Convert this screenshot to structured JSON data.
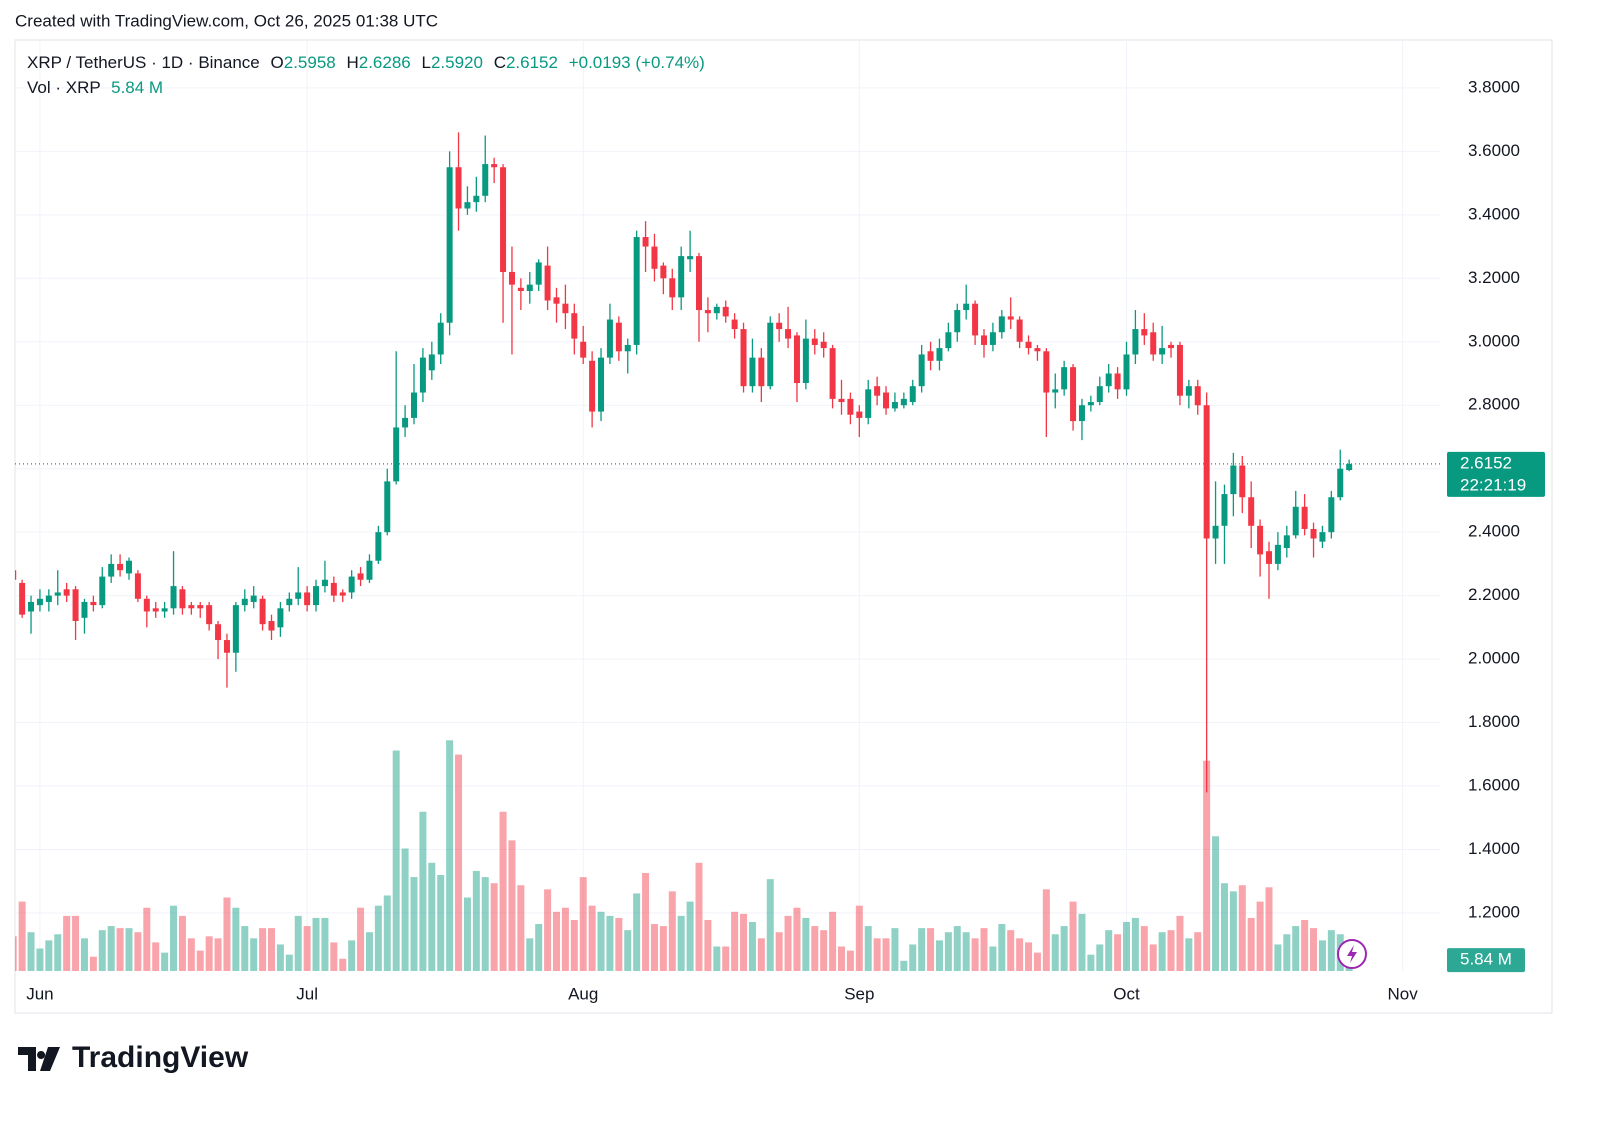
{
  "header": {
    "created": "Created with TradingView.com, Oct 26, 2025 01:38 UTC"
  },
  "chart_data": {
    "type": "candlestick",
    "legend": {
      "symbol": "XRP / TetherUS · 1D · Binance",
      "open_key": "O",
      "open": "2.5958",
      "high_key": "H",
      "high": "2.6286",
      "low_key": "L",
      "low": "2.5920",
      "close_key": "C",
      "close": "2.6152",
      "change": "+0.0193 (+0.74%)"
    },
    "categories": [
      null,
      null,
      null,
      "Jun",
      null,
      null,
      null,
      null,
      null,
      null,
      null,
      null,
      null,
      null,
      null,
      null,
      null,
      null,
      null,
      null,
      null,
      null,
      null,
      null,
      null,
      null,
      null,
      null,
      null,
      null,
      null,
      null,
      null,
      "Jul",
      null,
      null,
      null,
      null,
      null,
      null,
      null,
      null,
      null,
      null,
      null,
      null,
      null,
      null,
      null,
      null,
      null,
      null,
      null,
      null,
      null,
      null,
      null,
      null,
      null,
      null,
      null,
      null,
      null,
      null,
      "Aug",
      null,
      null,
      null,
      null,
      null,
      null,
      null,
      null,
      null,
      null,
      null,
      null,
      null,
      null,
      null,
      null,
      null,
      null,
      null,
      null,
      null,
      null,
      null,
      null,
      null,
      null,
      null,
      null,
      null,
      null,
      "Sep",
      null,
      null,
      null,
      null,
      null,
      null,
      null,
      null,
      null,
      null,
      null,
      null,
      null,
      null,
      null,
      null,
      null,
      null,
      null,
      null,
      null,
      null,
      null,
      null,
      null,
      null,
      null,
      null,
      null,
      "Oct",
      null,
      null,
      null,
      null,
      null,
      null,
      null,
      null,
      null,
      null,
      null,
      null,
      null,
      null,
      null,
      null,
      null,
      null,
      null,
      null,
      null,
      null,
      null,
      null,
      null,
      null,
      null,
      null,
      null,
      null,
      "Nov",
      null,
      null,
      null
    ],
    "open": [
      2.28,
      2.24,
      2.15,
      2.17,
      2.18,
      2.2,
      2.22,
      2.22,
      2.13,
      2.18,
      2.17,
      2.26,
      2.3,
      2.27,
      2.27,
      2.19,
      2.16,
      2.15,
      2.16,
      2.22,
      2.17,
      2.17,
      2.17,
      2.11,
      2.06,
      2.02,
      2.17,
      2.18,
      2.19,
      2.12,
      2.1,
      2.17,
      2.19,
      2.21,
      2.17,
      2.23,
      2.24,
      2.21,
      2.21,
      2.27,
      2.25,
      2.31,
      2.4,
      2.56,
      2.73,
      2.76,
      2.84,
      2.91,
      2.96,
      3.06,
      3.55,
      3.42,
      3.44,
      3.46,
      3.56,
      3.55,
      3.22,
      3.17,
      3.16,
      3.18,
      3.24,
      3.14,
      3.12,
      3.09,
      3.0,
      2.94,
      2.78,
      2.95,
      3.06,
      2.97,
      2.99,
      3.33,
      3.3,
      3.24,
      3.2,
      3.14,
      3.26,
      3.27,
      3.1,
      3.09,
      3.11,
      3.07,
      3.04,
      2.86,
      2.95,
      2.86,
      3.06,
      3.04,
      3.02,
      2.87,
      3.01,
      3.0,
      2.98,
      2.82,
      2.82,
      2.78,
      2.76,
      2.86,
      2.84,
      2.79,
      2.8,
      2.81,
      2.86,
      2.97,
      2.94,
      2.98,
      3.03,
      3.1,
      3.12,
      3.02,
      2.99,
      3.03,
      3.08,
      3.07,
      3.0,
      2.98,
      2.97,
      2.84,
      2.85,
      2.92,
      2.75,
      2.8,
      2.81,
      2.86,
      2.9,
      2.85,
      2.96,
      3.04,
      3.03,
      2.96,
      2.99,
      2.99,
      2.83,
      2.86,
      2.8,
      2.38,
      2.42,
      2.52,
      2.61,
      2.51,
      2.42,
      2.34,
      2.3,
      2.35,
      2.39,
      2.48,
      2.41,
      2.37,
      2.4,
      2.51,
      2.5958,
      null,
      null,
      null,
      null,
      null,
      null,
      null,
      null,
      null
    ],
    "high": [
      2.3,
      2.25,
      2.2,
      2.22,
      2.22,
      2.28,
      2.24,
      2.23,
      2.19,
      2.2,
      2.29,
      2.33,
      2.33,
      2.32,
      2.28,
      2.2,
      2.18,
      2.18,
      2.34,
      2.23,
      2.18,
      2.18,
      2.18,
      2.12,
      2.08,
      2.18,
      2.22,
      2.23,
      2.2,
      2.14,
      2.18,
      2.21,
      2.29,
      2.23,
      2.25,
      2.31,
      2.26,
      2.22,
      2.28,
      2.29,
      2.33,
      2.42,
      2.6,
      2.97,
      2.8,
      2.93,
      2.98,
      3.0,
      3.09,
      3.6,
      3.66,
      3.49,
      3.52,
      3.65,
      3.58,
      3.56,
      3.3,
      3.2,
      3.22,
      3.26,
      3.3,
      3.17,
      3.18,
      3.12,
      3.05,
      2.97,
      2.98,
      3.12,
      3.08,
      3.01,
      3.35,
      3.38,
      3.34,
      3.25,
      3.23,
      3.3,
      3.35,
      3.28,
      3.14,
      3.12,
      3.13,
      3.09,
      3.06,
      3.01,
      2.98,
      3.08,
      3.09,
      3.11,
      3.03,
      3.07,
      3.04,
      3.03,
      2.99,
      2.88,
      2.84,
      2.8,
      2.88,
      2.89,
      2.86,
      2.84,
      2.84,
      2.88,
      2.99,
      3.0,
      3.01,
      3.06,
      3.12,
      3.18,
      3.13,
      3.04,
      3.06,
      3.1,
      3.14,
      3.08,
      3.02,
      2.99,
      2.98,
      2.9,
      2.94,
      2.93,
      2.82,
      2.83,
      2.89,
      2.93,
      2.92,
      3.0,
      3.1,
      3.09,
      3.06,
      3.05,
      3.0,
      3.0,
      2.88,
      2.88,
      2.84,
      2.56,
      2.55,
      2.65,
      2.64,
      2.56,
      2.44,
      2.37,
      2.4,
      2.42,
      2.53,
      2.52,
      2.43,
      2.42,
      2.53,
      2.66,
      2.6286,
      null,
      null,
      null,
      null,
      null,
      null,
      null,
      null,
      null
    ],
    "low": [
      2.22,
      2.13,
      2.08,
      2.15,
      2.15,
      2.17,
      2.18,
      2.06,
      2.08,
      2.15,
      2.16,
      2.24,
      2.26,
      2.25,
      2.18,
      2.1,
      2.13,
      2.13,
      2.14,
      2.14,
      2.14,
      2.13,
      2.09,
      2.0,
      1.91,
      1.96,
      2.15,
      2.16,
      2.09,
      2.06,
      2.07,
      2.15,
      2.17,
      2.15,
      2.15,
      2.21,
      2.18,
      2.18,
      2.19,
      2.23,
      2.24,
      2.3,
      2.39,
      2.55,
      2.7,
      2.74,
      2.81,
      2.88,
      2.93,
      3.02,
      3.35,
      3.4,
      3.41,
      3.44,
      3.5,
      3.06,
      2.96,
      3.1,
      3.12,
      3.16,
      3.1,
      3.06,
      3.04,
      2.96,
      2.93,
      2.73,
      2.75,
      2.93,
      2.94,
      2.9,
      2.96,
      3.22,
      3.19,
      3.15,
      3.1,
      3.1,
      3.22,
      3.0,
      3.03,
      3.07,
      3.06,
      3.01,
      2.84,
      2.84,
      2.81,
      2.85,
      3.0,
      2.98,
      2.81,
      2.85,
      2.96,
      2.95,
      2.79,
      2.77,
      2.74,
      2.7,
      2.74,
      2.8,
      2.77,
      2.78,
      2.79,
      2.8,
      2.84,
      2.91,
      2.91,
      2.97,
      3.0,
      3.07,
      2.99,
      2.95,
      2.97,
      3.01,
      3.04,
      2.98,
      2.96,
      2.94,
      2.7,
      2.79,
      2.83,
      2.72,
      2.69,
      2.78,
      2.8,
      2.84,
      2.82,
      2.83,
      2.93,
      2.99,
      2.94,
      2.93,
      2.95,
      2.8,
      2.79,
      2.77,
      1.58,
      2.3,
      2.3,
      2.45,
      2.46,
      2.35,
      2.26,
      2.19,
      2.28,
      2.32,
      2.38,
      2.39,
      2.32,
      2.35,
      2.38,
      2.5,
      2.592,
      null,
      null,
      null,
      null,
      null,
      null,
      null,
      null,
      null
    ],
    "close": [
      2.25,
      2.14,
      2.18,
      2.19,
      2.2,
      2.21,
      2.2,
      2.12,
      2.18,
      2.17,
      2.26,
      2.3,
      2.28,
      2.31,
      2.19,
      2.15,
      2.15,
      2.16,
      2.23,
      2.16,
      2.16,
      2.16,
      2.11,
      2.06,
      2.02,
      2.17,
      2.19,
      2.2,
      2.11,
      2.09,
      2.16,
      2.19,
      2.21,
      2.17,
      2.23,
      2.25,
      2.2,
      2.2,
      2.26,
      2.25,
      2.31,
      2.4,
      2.56,
      2.73,
      2.76,
      2.84,
      2.95,
      2.96,
      3.06,
      3.55,
      3.42,
      3.44,
      3.46,
      3.56,
      3.55,
      3.22,
      3.18,
      3.16,
      3.18,
      3.25,
      3.13,
      3.12,
      3.09,
      3.01,
      2.95,
      2.78,
      2.95,
      3.07,
      2.97,
      2.99,
      3.33,
      3.3,
      3.23,
      3.2,
      3.14,
      3.27,
      3.27,
      3.1,
      3.09,
      3.11,
      3.08,
      3.04,
      2.86,
      2.95,
      2.86,
      3.06,
      3.04,
      3.01,
      2.87,
      3.01,
      2.99,
      2.98,
      2.82,
      2.81,
      2.77,
      2.76,
      2.85,
      2.83,
      2.79,
      2.81,
      2.82,
      2.86,
      2.96,
      2.94,
      2.98,
      3.03,
      3.1,
      3.12,
      3.02,
      2.99,
      3.03,
      3.08,
      3.07,
      3.0,
      2.98,
      2.97,
      2.84,
      2.85,
      2.92,
      2.75,
      2.8,
      2.81,
      2.86,
      2.9,
      2.85,
      2.96,
      3.04,
      3.02,
      2.96,
      2.98,
      2.98,
      2.83,
      2.86,
      2.8,
      2.38,
      2.42,
      2.52,
      2.61,
      2.51,
      2.42,
      2.33,
      2.3,
      2.36,
      2.39,
      2.48,
      2.41,
      2.38,
      2.4,
      2.51,
      2.6,
      2.6152,
      null,
      null,
      null,
      null,
      null,
      null,
      null,
      null,
      null
    ],
    "volume": {
      "name": "Vol · XRP",
      "axis": "y2",
      "last_label": "5.84 M",
      "values": [
        17,
        34,
        19,
        11,
        15,
        18,
        27,
        27,
        16,
        7,
        20,
        22,
        21,
        21,
        19,
        31,
        14,
        9,
        32,
        27,
        16,
        10,
        17,
        16,
        36,
        31,
        22,
        16,
        21,
        21,
        13,
        8,
        27,
        22,
        26,
        26,
        14,
        6,
        15,
        31,
        19,
        32,
        37,
        108,
        60,
        46,
        78,
        53,
        47,
        113,
        106,
        36,
        49,
        46,
        43,
        78,
        64,
        42,
        16,
        23,
        40,
        29,
        31,
        25,
        46,
        32,
        29,
        27,
        26,
        20,
        38,
        48,
        23,
        22,
        39,
        27,
        34,
        53,
        25,
        12,
        12,
        29,
        28,
        24,
        16,
        45,
        19,
        27,
        31,
        26,
        22,
        20,
        29,
        12,
        10,
        32,
        22,
        16,
        16,
        21,
        5,
        13,
        21,
        21,
        15,
        19,
        22,
        19,
        16,
        21,
        12,
        23,
        20,
        16,
        14,
        9,
        40,
        18,
        22,
        34,
        28,
        8,
        13,
        20,
        18,
        24,
        26,
        22,
        13,
        19,
        20,
        27,
        16,
        19,
        103,
        66,
        43,
        39,
        42,
        26,
        34,
        41,
        13,
        18,
        22,
        25,
        21,
        15,
        20,
        18,
        5.84,
        null,
        null,
        null,
        null,
        null,
        null,
        null,
        null,
        null
      ]
    },
    "countdown": "22:21:19",
    "up_color": "#089981",
    "down_color": "#f23645",
    "ylim": [
      1.017,
      3.951
    ],
    "yticks": [
      {
        "value": 1.2,
        "label": "1.2000"
      },
      {
        "value": 1.4,
        "label": "1.4000"
      },
      {
        "value": 1.6,
        "label": "1.6000"
      },
      {
        "value": 1.8,
        "label": "1.8000"
      },
      {
        "value": 2.0,
        "label": "2.0000"
      },
      {
        "value": 2.2,
        "label": "2.2000"
      },
      {
        "value": 2.4,
        "label": "2.4000"
      },
      {
        "value": 2.6,
        "label": "2.6000"
      },
      {
        "value": 2.8,
        "label": "2.8000"
      },
      {
        "value": 3.0,
        "label": "3.0000"
      },
      {
        "value": 3.2,
        "label": "3.2000"
      },
      {
        "value": 3.4,
        "label": "3.4000"
      },
      {
        "value": 3.6,
        "label": "3.6000"
      },
      {
        "value": 3.8,
        "label": "3.8000"
      }
    ],
    "y2lim": [
      0,
      456
    ],
    "grid": true
  },
  "footer": {
    "logo": "TradingView"
  }
}
